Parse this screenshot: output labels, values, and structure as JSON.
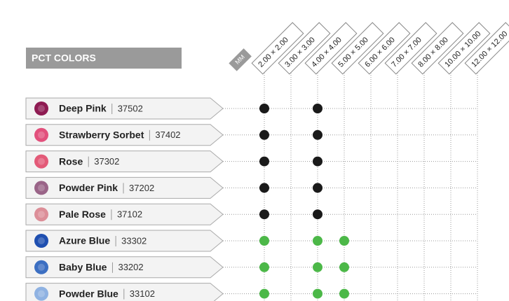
{
  "header": {
    "title": "PCT COLORS",
    "unit": "MM"
  },
  "sizes": [
    "2.00 × 2.00",
    "3.00 × 3.00",
    "4.00 × 4.00",
    "5.00 × 5.00",
    "6.00 × 6.00",
    "7.00 × 7.00",
    "8.00 × 8.00",
    "10.00 × 10.00",
    "12.00 × 12.00"
  ],
  "rows": [
    {
      "name": "Deep Pink",
      "code": "37502",
      "swatch": "#8e1b52",
      "dot_color": "#1a1a1a",
      "available": [
        true,
        false,
        true,
        false,
        false,
        false,
        false,
        false,
        false
      ]
    },
    {
      "name": "Strawberry Sorbet",
      "code": "37402",
      "swatch": "#e2507c",
      "dot_color": "#1a1a1a",
      "available": [
        true,
        false,
        true,
        false,
        false,
        false,
        false,
        false,
        false
      ]
    },
    {
      "name": "Rose",
      "code": "37302",
      "swatch": "#e35a78",
      "dot_color": "#1a1a1a",
      "available": [
        true,
        false,
        true,
        false,
        false,
        false,
        false,
        false,
        false
      ]
    },
    {
      "name": "Powder Pink",
      "code": "37202",
      "swatch": "#9a6488",
      "dot_color": "#1a1a1a",
      "available": [
        true,
        false,
        true,
        false,
        false,
        false,
        false,
        false,
        false
      ]
    },
    {
      "name": "Pale Rose",
      "code": "37102",
      "swatch": "#dc8e98",
      "dot_color": "#1a1a1a",
      "available": [
        true,
        false,
        true,
        false,
        false,
        false,
        false,
        false,
        false
      ]
    },
    {
      "name": "Azure Blue",
      "code": "33302",
      "swatch": "#1f4fb0",
      "dot_color": "#4cb848",
      "available": [
        true,
        false,
        true,
        true,
        false,
        false,
        false,
        false,
        false
      ]
    },
    {
      "name": "Baby Blue",
      "code": "33202",
      "swatch": "#3c6fc2",
      "dot_color": "#4cb848",
      "available": [
        true,
        false,
        true,
        true,
        false,
        false,
        false,
        false,
        false
      ]
    },
    {
      "name": "Powder Blue",
      "code": "33102",
      "swatch": "#8fb2e2",
      "dot_color": "#4cb848",
      "available": [
        true,
        false,
        true,
        true,
        false,
        false,
        false,
        false,
        false
      ]
    }
  ]
}
